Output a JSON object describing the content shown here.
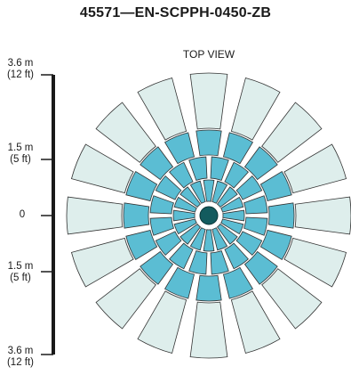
{
  "header": {
    "title": "45571—EN-SCPPH-0450-ZB",
    "view_label": "TOP VIEW"
  },
  "scale": {
    "labels": [
      {
        "main": "3.6 m",
        "sub": "(12 ft)"
      },
      {
        "main": "1.5 m",
        "sub": "(5 ft)"
      },
      {
        "main": "0",
        "sub": ""
      },
      {
        "main": "1.5 m",
        "sub": "(5 ft)"
      },
      {
        "main": "3.6 m",
        "sub": "(12 ft)"
      }
    ]
  },
  "pattern": {
    "outer_zone_color": "#deeeec",
    "inner_zone_color": "#5bbdd3",
    "sensor_color": "#135b5e",
    "outline_color": "#333333"
  }
}
